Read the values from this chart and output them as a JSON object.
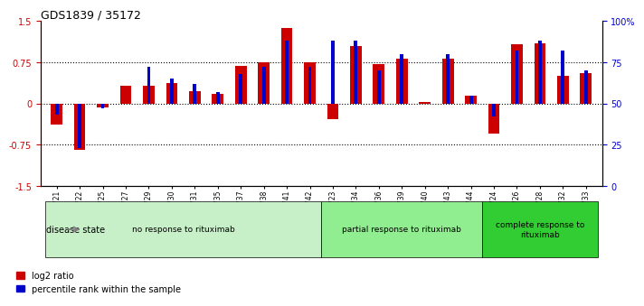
{
  "title": "GDS1839 / 35172",
  "samples": [
    "GSM84721",
    "GSM84722",
    "GSM84725",
    "GSM84727",
    "GSM84729",
    "GSM84730",
    "GSM84731",
    "GSM84735",
    "GSM84737",
    "GSM84738",
    "GSM84741",
    "GSM84742",
    "GSM84723",
    "GSM84734",
    "GSM84736",
    "GSM84739",
    "GSM84740",
    "GSM84743",
    "GSM84744",
    "GSM84724",
    "GSM84726",
    "GSM84728",
    "GSM84732",
    "GSM84733"
  ],
  "log2_ratio": [
    -0.38,
    -0.85,
    -0.07,
    0.32,
    0.32,
    0.38,
    0.22,
    0.18,
    0.68,
    0.75,
    1.38,
    0.75,
    -0.28,
    1.05,
    0.72,
    0.82,
    0.02,
    0.82,
    0.15,
    -0.55,
    1.08,
    1.1,
    0.5,
    0.55
  ],
  "percentile": [
    43,
    23,
    47,
    50,
    72,
    65,
    62,
    57,
    68,
    72,
    88,
    72,
    88,
    88,
    70,
    80,
    50,
    80,
    55,
    42,
    82,
    88,
    82,
    70
  ],
  "group_labels": [
    "no response to rituximab",
    "partial response to rituximab",
    "complete response to\nrituximab"
  ],
  "group_sizes": [
    12,
    7,
    5
  ],
  "group_colors": [
    "#c8f0c8",
    "#90ee90",
    "#32cd32"
  ],
  "bar_color_red": "#cc0000",
  "bar_color_blue": "#0000cc",
  "ylim_left": [
    -1.5,
    1.5
  ],
  "yticks_left": [
    -1.5,
    -0.75,
    0.0,
    0.75,
    1.5
  ],
  "ytick_labels_left": [
    "-1.5",
    "-0.75",
    "0",
    "0.75",
    "1.5"
  ],
  "ylim_right": [
    0,
    100
  ],
  "yticks_right": [
    0,
    25,
    50,
    75,
    100
  ],
  "ytick_labels_right": [
    "0",
    "25",
    "50",
    "75",
    "100%"
  ],
  "hlines": [
    -0.75,
    0.0,
    0.75
  ],
  "legend_red": "log2 ratio",
  "legend_blue": "percentile rank within the sample",
  "disease_state_label": "disease state"
}
